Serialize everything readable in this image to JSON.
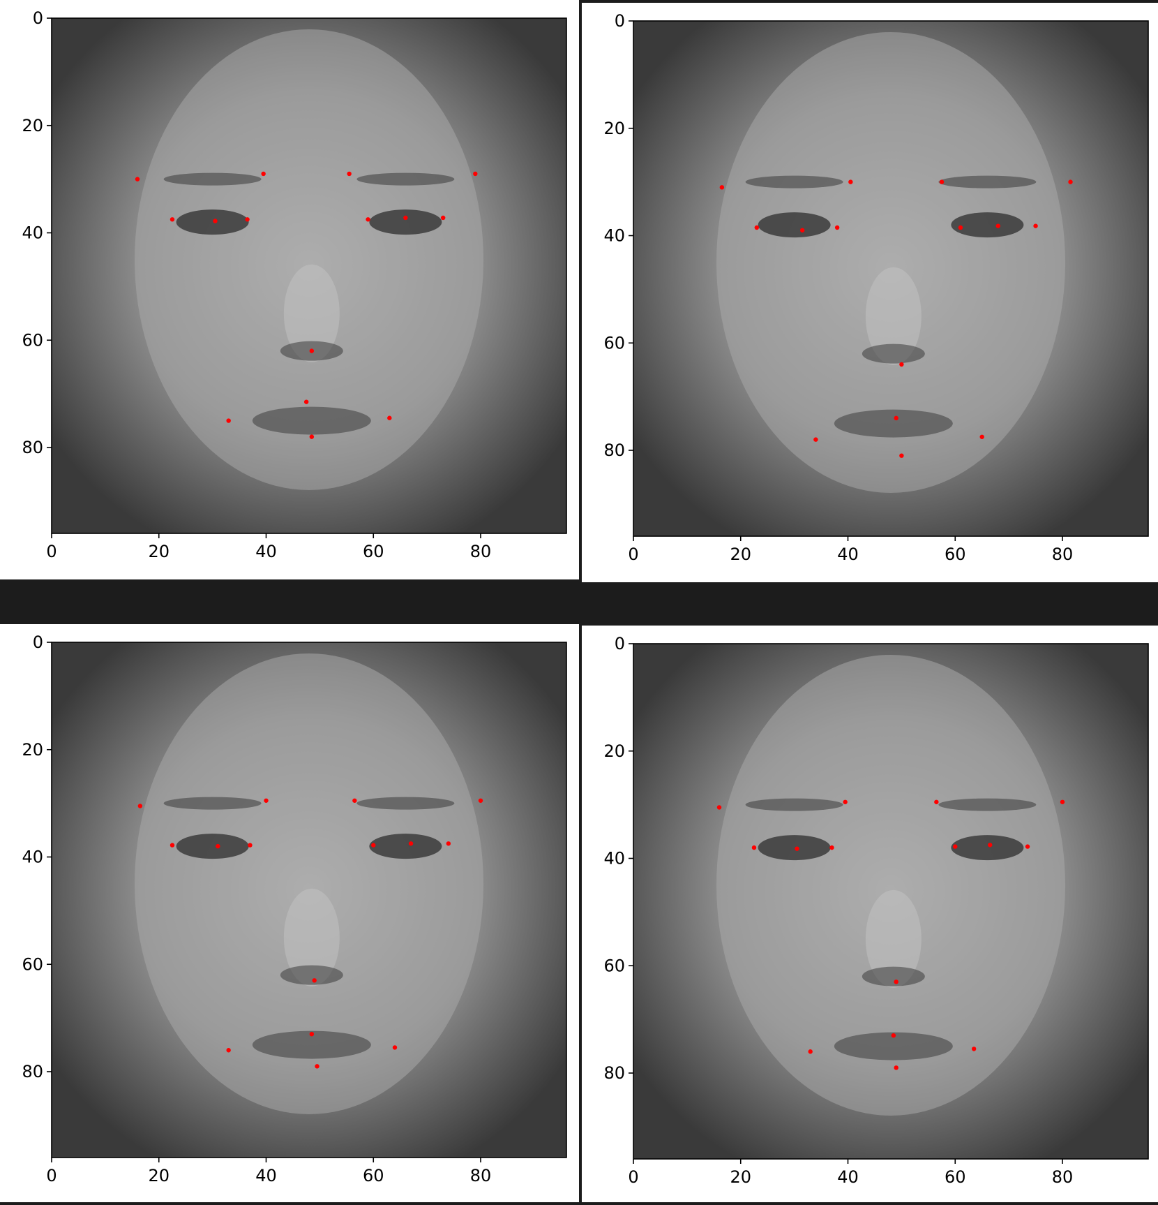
{
  "colors": {
    "background": "#ffffff",
    "separator": "#1c1c1c",
    "marker": "#ff0000",
    "axis": "#000000"
  },
  "chart_data": [
    {
      "type": "scatter",
      "panel": "top-left",
      "image": "grayscale face",
      "xlim": [
        0,
        96
      ],
      "ylim": [
        96,
        0
      ],
      "xticks": [
        "0",
        "20",
        "40",
        "60",
        "80"
      ],
      "yticks": [
        "0",
        "20",
        "40",
        "60",
        "80"
      ],
      "points": [
        {
          "x": 16,
          "y": 30
        },
        {
          "x": 39.5,
          "y": 29
        },
        {
          "x": 55.5,
          "y": 29
        },
        {
          "x": 79,
          "y": 29
        },
        {
          "x": 22.5,
          "y": 37.5
        },
        {
          "x": 30.5,
          "y": 37.8
        },
        {
          "x": 36.5,
          "y": 37.5
        },
        {
          "x": 59,
          "y": 37.5
        },
        {
          "x": 66,
          "y": 37.2
        },
        {
          "x": 73,
          "y": 37.2
        },
        {
          "x": 48.5,
          "y": 62
        },
        {
          "x": 47.5,
          "y": 71.5
        },
        {
          "x": 33,
          "y": 75
        },
        {
          "x": 63,
          "y": 74.5
        },
        {
          "x": 48.5,
          "y": 78
        }
      ]
    },
    {
      "type": "scatter",
      "panel": "top-right",
      "image": "grayscale face",
      "xlim": [
        0,
        96
      ],
      "ylim": [
        96,
        0
      ],
      "xticks": [
        "0",
        "20",
        "40",
        "60",
        "80"
      ],
      "yticks": [
        "0",
        "20",
        "40",
        "60",
        "80"
      ],
      "points": [
        {
          "x": 16.5,
          "y": 31
        },
        {
          "x": 40.5,
          "y": 30
        },
        {
          "x": 57.5,
          "y": 30
        },
        {
          "x": 81.5,
          "y": 30
        },
        {
          "x": 23,
          "y": 38.5
        },
        {
          "x": 31.5,
          "y": 39
        },
        {
          "x": 38,
          "y": 38.5
        },
        {
          "x": 61,
          "y": 38.5
        },
        {
          "x": 68,
          "y": 38.2
        },
        {
          "x": 75,
          "y": 38.2
        },
        {
          "x": 50,
          "y": 64
        },
        {
          "x": 49,
          "y": 74
        },
        {
          "x": 34,
          "y": 78
        },
        {
          "x": 65,
          "y": 77.5
        },
        {
          "x": 50,
          "y": 81
        }
      ]
    },
    {
      "type": "scatter",
      "panel": "bottom-left",
      "image": "grayscale face",
      "xlim": [
        0,
        96
      ],
      "ylim": [
        96,
        0
      ],
      "xticks": [
        "0",
        "20",
        "40",
        "60",
        "80"
      ],
      "yticks": [
        "0",
        "20",
        "40",
        "60",
        "80"
      ],
      "points": [
        {
          "x": 16.5,
          "y": 30.5
        },
        {
          "x": 40,
          "y": 29.5
        },
        {
          "x": 56.5,
          "y": 29.5
        },
        {
          "x": 80,
          "y": 29.5
        },
        {
          "x": 22.5,
          "y": 37.8
        },
        {
          "x": 31,
          "y": 38
        },
        {
          "x": 37,
          "y": 37.8
        },
        {
          "x": 60,
          "y": 37.8
        },
        {
          "x": 67,
          "y": 37.5
        },
        {
          "x": 74,
          "y": 37.5
        },
        {
          "x": 49,
          "y": 63
        },
        {
          "x": 48.5,
          "y": 73
        },
        {
          "x": 33,
          "y": 76
        },
        {
          "x": 64,
          "y": 75.5
        },
        {
          "x": 49.5,
          "y": 79
        }
      ]
    },
    {
      "type": "scatter",
      "panel": "bottom-right",
      "image": "grayscale face",
      "xlim": [
        0,
        96
      ],
      "ylim": [
        96,
        0
      ],
      "xticks": [
        "0",
        "20",
        "40",
        "60",
        "80"
      ],
      "yticks": [
        "0",
        "20",
        "40",
        "60",
        "80"
      ],
      "points": [
        {
          "x": 16,
          "y": 30.5
        },
        {
          "x": 39.5,
          "y": 29.5
        },
        {
          "x": 56.5,
          "y": 29.5
        },
        {
          "x": 80,
          "y": 29.5
        },
        {
          "x": 22.5,
          "y": 38
        },
        {
          "x": 30.5,
          "y": 38.2
        },
        {
          "x": 37,
          "y": 38
        },
        {
          "x": 60,
          "y": 37.8
        },
        {
          "x": 66.5,
          "y": 37.5
        },
        {
          "x": 73.5,
          "y": 37.8
        },
        {
          "x": 49,
          "y": 63
        },
        {
          "x": 48.5,
          "y": 73
        },
        {
          "x": 33,
          "y": 76
        },
        {
          "x": 63.5,
          "y": 75.5
        },
        {
          "x": 49,
          "y": 79
        }
      ]
    }
  ]
}
